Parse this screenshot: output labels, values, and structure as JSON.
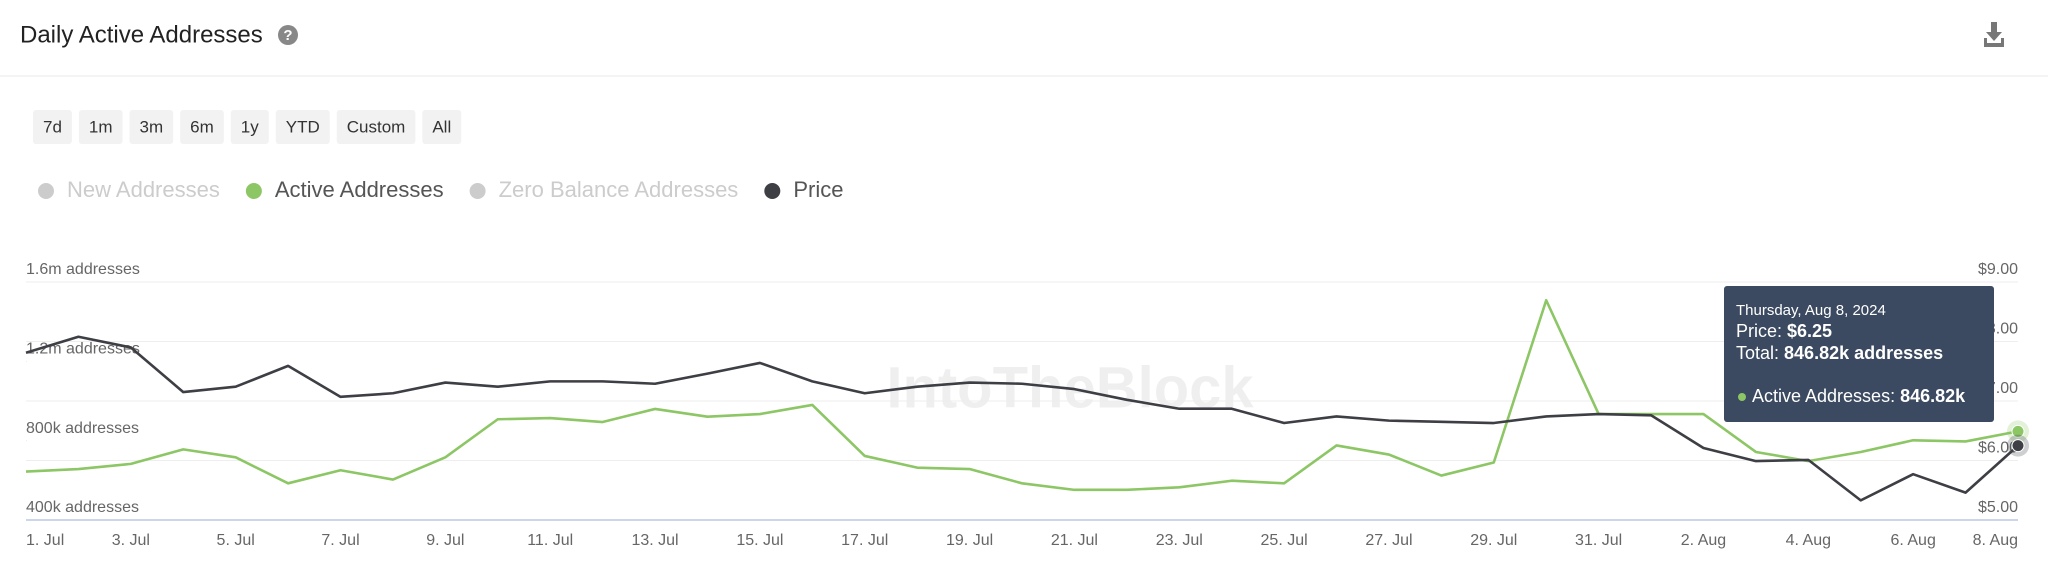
{
  "header": {
    "title": "Daily Active Addresses"
  },
  "range_buttons": [
    "7d",
    "1m",
    "3m",
    "6m",
    "1y",
    "YTD",
    "Custom",
    "All"
  ],
  "chart_data": {
    "type": "line",
    "watermark": "IntoTheBlock",
    "categories": [
      "1. Jul",
      null,
      "3. Jul",
      null,
      "5. Jul",
      null,
      "7. Jul",
      null,
      "9. Jul",
      null,
      "11. Jul",
      null,
      "13. Jul",
      null,
      "15. Jul",
      null,
      "17. Jul",
      null,
      "19. Jul",
      null,
      "21. Jul",
      null,
      "23. Jul",
      null,
      "25. Jul",
      null,
      "27. Jul",
      null,
      "29. Jul",
      null,
      "31. Jul",
      null,
      "2. Aug",
      null,
      "4. Aug",
      null,
      "6. Aug",
      null,
      "8. Aug"
    ],
    "ylim": [
      400000,
      1600000
    ],
    "yticks": [
      {
        "value": 400000,
        "label": "400k addresses"
      },
      {
        "value": 800000,
        "label": "800k addresses"
      },
      {
        "value": 1200000,
        "label": "1.2m addresses"
      },
      {
        "value": 1600000,
        "label": "1.6m addresses"
      }
    ],
    "y2lim": [
      5,
      9
    ],
    "y2ticks": [
      {
        "value": 5,
        "label": "$5.00"
      },
      {
        "value": 6,
        "label": "$6.00"
      },
      {
        "value": 7,
        "label": "$7.00"
      },
      {
        "value": 8,
        "label": "$8.00"
      },
      {
        "value": 9,
        "label": "$9.00"
      }
    ],
    "grid": true,
    "series": [
      {
        "name": "New Addresses",
        "color": "#cccccc",
        "hidden": true
      },
      {
        "name": "Active Addresses",
        "color": "#8cc665",
        "values": [
          644000,
          657000,
          683000,
          756000,
          716000,
          585000,
          651000,
          604000,
          716000,
          908000,
          914000,
          894000,
          960000,
          921000,
          934000,
          980000,
          723000,
          664000,
          657000,
          585000,
          552000,
          552000,
          565000,
          598000,
          585000,
          776000,
          730000,
          624000,
          690000,
          1508000,
          934000,
          934000,
          934000,
          743000,
          697000,
          743000,
          802000,
          796000,
          846820
        ]
      },
      {
        "name": "Zero Balance Addresses",
        "color": "#cccccc",
        "hidden": true
      },
      {
        "name": "Price",
        "color": "#3d3f45",
        "axis": "y2",
        "values": [
          7.81,
          8.08,
          7.9,
          7.15,
          7.24,
          7.59,
          7.07,
          7.13,
          7.31,
          7.24,
          7.33,
          7.33,
          7.29,
          7.46,
          7.64,
          7.33,
          7.13,
          7.24,
          7.31,
          7.29,
          7.2,
          7.02,
          6.87,
          6.87,
          6.63,
          6.74,
          6.67,
          6.65,
          6.63,
          6.74,
          6.78,
          6.76,
          6.21,
          5.99,
          6.01,
          5.33,
          5.77,
          5.46,
          6.25
        ]
      }
    ],
    "tooltip": {
      "date": "Thursday, Aug 8, 2024",
      "lines": [
        {
          "label": "Price:",
          "value": "$6.25"
        },
        {
          "label": "Total:",
          "value": "846.82k addresses"
        }
      ],
      "item": {
        "label": "Active Addresses:",
        "value": "846.82k"
      }
    }
  }
}
